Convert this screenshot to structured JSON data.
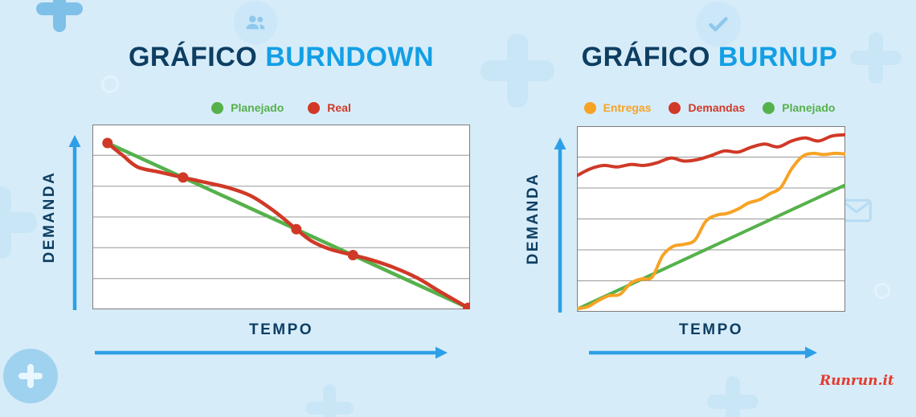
{
  "page": {
    "background_color": "#d7ecf9",
    "accent_blue": "#129fe5",
    "navy": "#0d3e62",
    "arrow_color": "#2d9fe8",
    "logo": "Runrun.it",
    "logo_color": "#e23b2e"
  },
  "charts": [
    {
      "title_prefix": "GRÁFICO",
      "title_main": "BURNDOWN",
      "ylabel": "DEMANDA",
      "xlabel": "TEMPO",
      "legend": [
        {
          "label": "Planejado",
          "color": "#56b14b"
        },
        {
          "label": "Real",
          "color": "#d03927"
        }
      ]
    },
    {
      "title_prefix": "GRÁFICO",
      "title_main": "BURNUP",
      "ylabel": "DEMANDA",
      "xlabel": "TEMPO",
      "legend": [
        {
          "label": "Entregas",
          "color": "#f6a325"
        },
        {
          "label": "Demandas",
          "color": "#d03927"
        },
        {
          "label": "Planejado",
          "color": "#56b14b"
        }
      ]
    }
  ],
  "chart_data": [
    {
      "type": "line",
      "title": "GRÁFICO BURNDOWN",
      "xlabel": "TEMPO",
      "ylabel": "DEMANDA",
      "xlim": [
        0,
        10
      ],
      "ylim": [
        0,
        6
      ],
      "grid_rows": 6,
      "grid": "horizontal-only",
      "legend_position": "top",
      "series": [
        {
          "name": "Planejado",
          "color": "#56b14b",
          "shape": "straight",
          "width": 4.5,
          "points": [
            [
              0.4,
              5.4
            ],
            [
              9.95,
              0.05
            ]
          ]
        },
        {
          "name": "Real",
          "color": "#d03927",
          "shape": "smooth",
          "width": 4.5,
          "points": [
            [
              0.4,
              5.4
            ],
            [
              0.8,
              5.0
            ],
            [
              1.2,
              4.62
            ],
            [
              1.8,
              4.45
            ],
            [
              2.4,
              4.28
            ],
            [
              3.0,
              4.12
            ],
            [
              3.6,
              3.95
            ],
            [
              4.2,
              3.68
            ],
            [
              4.8,
              3.2
            ],
            [
              5.4,
              2.6
            ],
            [
              5.8,
              2.22
            ],
            [
              6.3,
              1.95
            ],
            [
              6.9,
              1.76
            ],
            [
              7.4,
              1.6
            ],
            [
              8.0,
              1.35
            ],
            [
              8.6,
              1.02
            ],
            [
              9.2,
              0.58
            ],
            [
              9.95,
              0.05
            ]
          ],
          "markers": [
            [
              0.4,
              5.4
            ],
            [
              2.4,
              4.28
            ],
            [
              5.4,
              2.6
            ],
            [
              6.9,
              1.76
            ],
            [
              9.95,
              0.05
            ]
          ]
        }
      ]
    },
    {
      "type": "line",
      "title": "GRÁFICO BURNUP",
      "xlabel": "TEMPO",
      "ylabel": "DEMANDA",
      "xlim": [
        0,
        10
      ],
      "ylim": [
        0,
        6
      ],
      "grid_rows": 6,
      "grid": "horizontal-only",
      "legend_position": "top",
      "series": [
        {
          "name": "Planejado",
          "color": "#56b14b",
          "shape": "straight",
          "width": 4,
          "points": [
            [
              0,
              0.08
            ],
            [
              10,
              4.1
            ]
          ]
        },
        {
          "name": "Demandas",
          "color": "#d03927",
          "shape": "smooth",
          "width": 4,
          "points": [
            [
              0,
              4.4
            ],
            [
              0.5,
              4.62
            ],
            [
              1.0,
              4.73
            ],
            [
              1.5,
              4.68
            ],
            [
              2.0,
              4.76
            ],
            [
              2.5,
              4.73
            ],
            [
              3.0,
              4.82
            ],
            [
              3.5,
              4.97
            ],
            [
              4.0,
              4.87
            ],
            [
              4.5,
              4.92
            ],
            [
              5.0,
              5.05
            ],
            [
              5.5,
              5.2
            ],
            [
              6.0,
              5.16
            ],
            [
              6.5,
              5.32
            ],
            [
              7.0,
              5.42
            ],
            [
              7.5,
              5.33
            ],
            [
              8.0,
              5.52
            ],
            [
              8.5,
              5.62
            ],
            [
              9.0,
              5.52
            ],
            [
              9.5,
              5.68
            ],
            [
              10,
              5.72
            ]
          ]
        },
        {
          "name": "Entregas",
          "color": "#f6a325",
          "shape": "smooth",
          "width": 4,
          "points": [
            [
              0,
              0.1
            ],
            [
              0.4,
              0.16
            ],
            [
              0.8,
              0.36
            ],
            [
              1.2,
              0.52
            ],
            [
              1.6,
              0.56
            ],
            [
              2.0,
              0.92
            ],
            [
              2.4,
              1.06
            ],
            [
              2.8,
              1.12
            ],
            [
              3.2,
              1.82
            ],
            [
              3.6,
              2.12
            ],
            [
              4.0,
              2.18
            ],
            [
              4.4,
              2.32
            ],
            [
              4.8,
              2.92
            ],
            [
              5.2,
              3.12
            ],
            [
              5.6,
              3.18
            ],
            [
              6.0,
              3.32
            ],
            [
              6.4,
              3.52
            ],
            [
              6.8,
              3.62
            ],
            [
              7.2,
              3.82
            ],
            [
              7.6,
              4.02
            ],
            [
              8.0,
              4.62
            ],
            [
              8.4,
              5.02
            ],
            [
              8.8,
              5.12
            ],
            [
              9.2,
              5.08
            ],
            [
              9.6,
              5.12
            ],
            [
              10,
              5.1
            ]
          ]
        }
      ]
    }
  ]
}
